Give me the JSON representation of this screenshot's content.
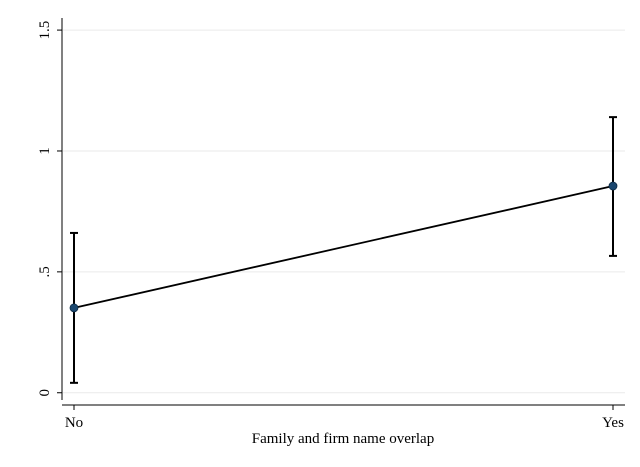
{
  "chart_data": {
    "type": "line",
    "xlabel": "Family and firm name overlap",
    "categories": [
      "No",
      "Yes"
    ],
    "series": [
      {
        "color": "#1a476f",
        "line_color": "#000000",
        "values": [
          0.351,
          0.855
        ],
        "ci_low": [
          0.041,
          0.566
        ],
        "ci_high": [
          0.661,
          1.14
        ]
      }
    ],
    "ylim": [
      -0.03,
      1.55
    ],
    "yticks": [
      0,
      {
        "value": 0.5,
        "label": ".5"
      },
      1,
      1.5
    ],
    "grid": true
  }
}
